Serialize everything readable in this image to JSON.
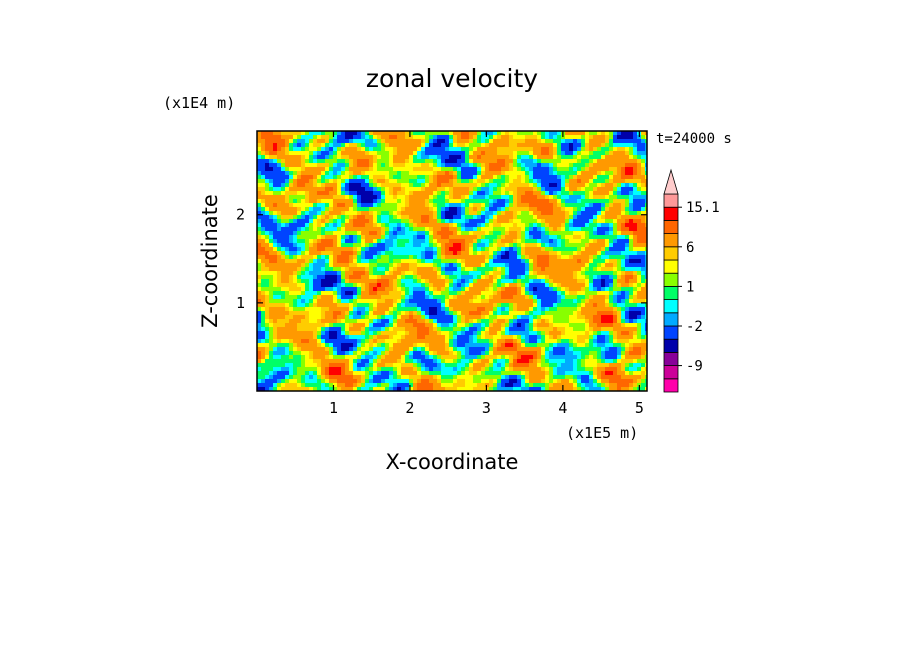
{
  "chart_data": {
    "type": "heatmap",
    "title": "zonal velocity",
    "xlabel": "X-coordinate",
    "ylabel": "Z-coordinate",
    "x_scale_label": "(x1E5 m)",
    "y_scale_label": "(x1E4 m)",
    "time_label": "t=24000 s",
    "x_ticks": [
      "1",
      "2",
      "3",
      "4",
      "5"
    ],
    "x_tick_values": [
      1,
      2,
      3,
      4,
      5
    ],
    "y_ticks": [
      "1",
      "2"
    ],
    "y_tick_values": [
      1,
      2
    ],
    "xlim": [
      0,
      5.1
    ],
    "ylim": [
      0,
      2.95
    ],
    "colorbar": {
      "tick_labels": [
        "15.1",
        "6",
        "1",
        "-2",
        "-9"
      ],
      "levels": [
        -15,
        -12,
        -9,
        -6,
        -3,
        -2,
        -1,
        0,
        1,
        2,
        3,
        6,
        9,
        12,
        15.1
      ],
      "colors": [
        "#ff00aa",
        "#cc0099",
        "#880099",
        "#0000aa",
        "#0044ff",
        "#00aaff",
        "#00ffff",
        "#00ff66",
        "#88ff00",
        "#ffff00",
        "#ffcc00",
        "#ff9900",
        "#ff6600",
        "#ff0000",
        "#ff9999",
        "#ffcccc"
      ]
    }
  }
}
